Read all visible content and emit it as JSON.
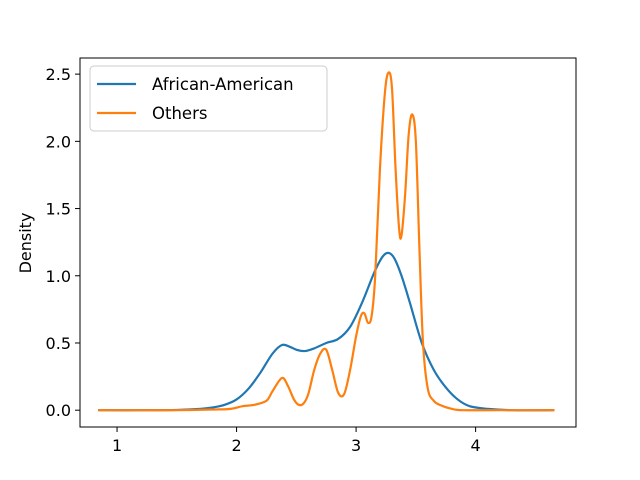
{
  "chart_data": {
    "type": "line",
    "title": "",
    "xlabel": "",
    "ylabel": "Density",
    "xlim": [
      0.69,
      4.84
    ],
    "ylim": [
      -0.125,
      2.62
    ],
    "x_ticks": [
      1,
      2,
      3,
      4
    ],
    "y_ticks": [
      0.0,
      0.5,
      1.0,
      1.5,
      2.0,
      2.5
    ],
    "x_tick_labels": [
      "1",
      "2",
      "3",
      "4"
    ],
    "y_tick_labels": [
      "0.0",
      "0.5",
      "1.0",
      "1.5",
      "2.0",
      "2.5"
    ],
    "grid": false,
    "legend_position": "top-left",
    "series": [
      {
        "name": "African-American",
        "color": "#1f77b4",
        "x": [
          0.85,
          1.2,
          1.5,
          1.7,
          1.8,
          1.9,
          2.0,
          2.1,
          2.2,
          2.3,
          2.38,
          2.45,
          2.5,
          2.57,
          2.65,
          2.75,
          2.85,
          2.95,
          3.05,
          3.15,
          3.22,
          3.27,
          3.32,
          3.38,
          3.45,
          3.55,
          3.65,
          3.75,
          3.85,
          3.95,
          4.1,
          4.3,
          4.65
        ],
        "y": [
          0.0,
          0.0,
          0.002,
          0.01,
          0.02,
          0.04,
          0.08,
          0.16,
          0.28,
          0.42,
          0.485,
          0.47,
          0.45,
          0.44,
          0.46,
          0.5,
          0.53,
          0.62,
          0.8,
          1.02,
          1.14,
          1.17,
          1.13,
          1.0,
          0.8,
          0.5,
          0.3,
          0.17,
          0.08,
          0.03,
          0.01,
          0.0,
          0.0
        ]
      },
      {
        "name": "Others",
        "color": "#ff7f0e",
        "x": [
          0.85,
          1.2,
          1.5,
          1.8,
          1.95,
          2.05,
          2.15,
          2.25,
          2.3,
          2.38,
          2.43,
          2.48,
          2.52,
          2.56,
          2.6,
          2.65,
          2.7,
          2.75,
          2.8,
          2.85,
          2.9,
          2.95,
          3.0,
          3.04,
          3.07,
          3.1,
          3.13,
          3.16,
          3.2,
          3.24,
          3.27,
          3.3,
          3.33,
          3.36,
          3.38,
          3.41,
          3.44,
          3.47,
          3.5,
          3.53,
          3.56,
          3.6,
          3.65,
          3.7,
          3.8,
          3.9,
          4.2,
          4.65
        ],
        "y": [
          0.0,
          0.0,
          0.0,
          0.005,
          0.01,
          0.03,
          0.04,
          0.07,
          0.14,
          0.24,
          0.18,
          0.08,
          0.04,
          0.05,
          0.12,
          0.3,
          0.42,
          0.45,
          0.3,
          0.13,
          0.12,
          0.3,
          0.55,
          0.7,
          0.72,
          0.65,
          0.7,
          1.0,
          1.8,
          2.35,
          2.51,
          2.4,
          1.8,
          1.35,
          1.3,
          1.6,
          2.05,
          2.2,
          2.0,
          1.2,
          0.5,
          0.16,
          0.07,
          0.04,
          0.01,
          0.0,
          0.0,
          0.0
        ]
      }
    ]
  }
}
